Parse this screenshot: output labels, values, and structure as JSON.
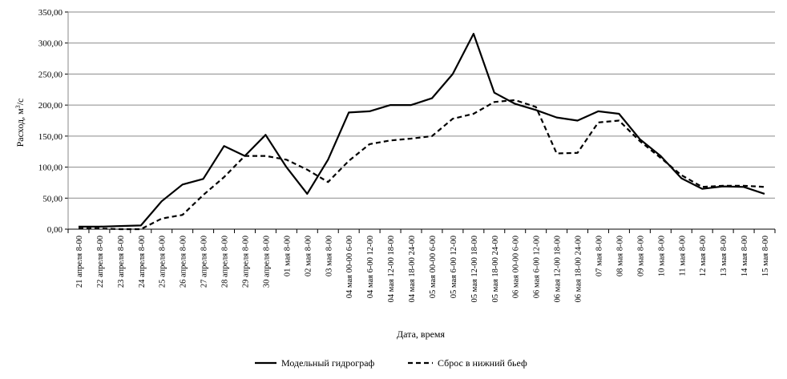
{
  "chart_data": {
    "type": "line",
    "xlabel": "Дата, время",
    "ylabel_main": "Расход, м",
    "ylabel_sup": "3",
    "ylabel_tail": "/с",
    "ylim": [
      0,
      350
    ],
    "yticks": [
      "0,00",
      "50,00",
      "100,00",
      "150,00",
      "200,00",
      "250,00",
      "300,00",
      "350,00"
    ],
    "grid": "horizontal",
    "legend_position": "bottom",
    "categories": [
      "21 апреля 8-00",
      "22 апреля 8-00",
      "23 апреля 8-00",
      "24 апреля 8-00",
      "25 апреля 8-00",
      "26 апреля 8-00",
      "27 апреля 8-00",
      "28 апреля 8-00",
      "29 апреля 8-00",
      "30 апреля 8-00",
      "01 мая 8-00",
      "02 мая 8-00",
      "03 мая 8-00",
      "04 мая 00-00 6-00",
      "04 мая 6-00 12-00",
      "04 мая 12-00 18-00",
      "04 мая 18-00 24-00",
      "05 мая 00-00 6-00",
      "05 мая 6-00 12-00",
      "05 мая 12-00 18-00",
      "05 мая 18-00 24-00",
      "06 мая 00-00 6-00",
      "06 мая 6-00 12-00",
      "06 мая 12-00 18-00",
      "06 мая 18-00 24-00",
      "07 мая 8-00",
      "08 мая 8-00",
      "09 мая 8-00",
      "10 мая 8-00",
      "11 мая 8-00",
      "12 мая 8-00",
      "13 мая 8-00",
      "14 мая 8-00",
      "15 мая 8-00"
    ],
    "series": [
      {
        "name": "Модельный гидрограф",
        "style": "solid",
        "color": "#000000",
        "values": [
          4,
          4,
          5,
          6,
          45,
          72,
          81,
          134,
          118,
          152,
          100,
          57,
          112,
          188,
          190,
          200,
          200,
          211,
          250,
          315,
          220,
          202,
          192,
          180,
          175,
          190,
          186,
          145,
          118,
          82,
          65,
          69,
          68,
          57
        ]
      },
      {
        "name": "Сброс в нижний бьеф",
        "style": "dashed",
        "color": "#000000",
        "values": [
          1,
          1,
          0,
          0,
          17,
          23,
          55,
          84,
          118,
          118,
          112,
          96,
          76,
          110,
          137,
          143,
          146,
          150,
          178,
          186,
          205,
          208,
          197,
          122,
          123,
          172,
          175,
          142,
          115,
          87,
          68,
          70,
          70,
          68
        ]
      }
    ]
  }
}
